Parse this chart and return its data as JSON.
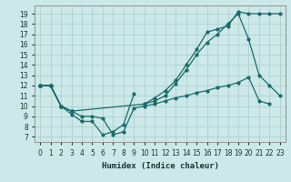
{
  "xlabel": "Humidex (Indice chaleur)",
  "bg_color": "#cce8e8",
  "line_color": "#1a6b6b",
  "grid_color": "#aacccc",
  "xlim": [
    -0.5,
    23.5
  ],
  "ylim": [
    6.5,
    19.8
  ],
  "yticks": [
    7,
    8,
    9,
    10,
    11,
    12,
    13,
    14,
    15,
    16,
    17,
    18,
    19
  ],
  "xticks": [
    0,
    1,
    2,
    3,
    4,
    5,
    6,
    7,
    8,
    9,
    10,
    11,
    12,
    13,
    14,
    15,
    16,
    17,
    18,
    19,
    20,
    21,
    22,
    23
  ],
  "s1_x": [
    0,
    1,
    2,
    3,
    4,
    5,
    6,
    7,
    8,
    9,
    10,
    11,
    12,
    13,
    14,
    15,
    16,
    17,
    18,
    19,
    20,
    21,
    22,
    23
  ],
  "s1_y": [
    12,
    12,
    10,
    9.2,
    8.5,
    8.5,
    7.2,
    7.5,
    8.2,
    11.2,
    null,
    null,
    null,
    null,
    null,
    null,
    null,
    null,
    null,
    null,
    null,
    null,
    null,
    null
  ],
  "s2_x": [
    0,
    1,
    2,
    3,
    4,
    5,
    6,
    7,
    8,
    9,
    10,
    11,
    12,
    13,
    14,
    15,
    16,
    17,
    18,
    19,
    20,
    21,
    22,
    23
  ],
  "s2_y": [
    12,
    12,
    10,
    9.5,
    9.0,
    9.0,
    8.8,
    7.2,
    7.5,
    9.8,
    10.0,
    10.2,
    10.5,
    10.8,
    11.0,
    11.3,
    11.5,
    11.8,
    12.0,
    12.3,
    12.8,
    10.5,
    10.2,
    null
  ],
  "s3_x": [
    0,
    1,
    2,
    3,
    4,
    5,
    6,
    7,
    8,
    9,
    10,
    11,
    12,
    13,
    14,
    15,
    16,
    17,
    18,
    19,
    20,
    21,
    22,
    23
  ],
  "s3_y": [
    12,
    12,
    10,
    9.5,
    null,
    null,
    null,
    null,
    null,
    null,
    10.2,
    10.5,
    11.0,
    12.2,
    13.5,
    15.0,
    16.2,
    17.0,
    18.0,
    19.0,
    16.5,
    13.0,
    12.0,
    11.0
  ],
  "s4_x": [
    0,
    1,
    2,
    3,
    10,
    11,
    12,
    13,
    14,
    15,
    16,
    17,
    18,
    19,
    20,
    21,
    22,
    23
  ],
  "s4_y": [
    12,
    12,
    10,
    9.5,
    10.2,
    10.8,
    11.5,
    12.5,
    14.0,
    15.5,
    17.2,
    17.5,
    17.8,
    19.2,
    19.0,
    19.0,
    19.0,
    19.0
  ]
}
